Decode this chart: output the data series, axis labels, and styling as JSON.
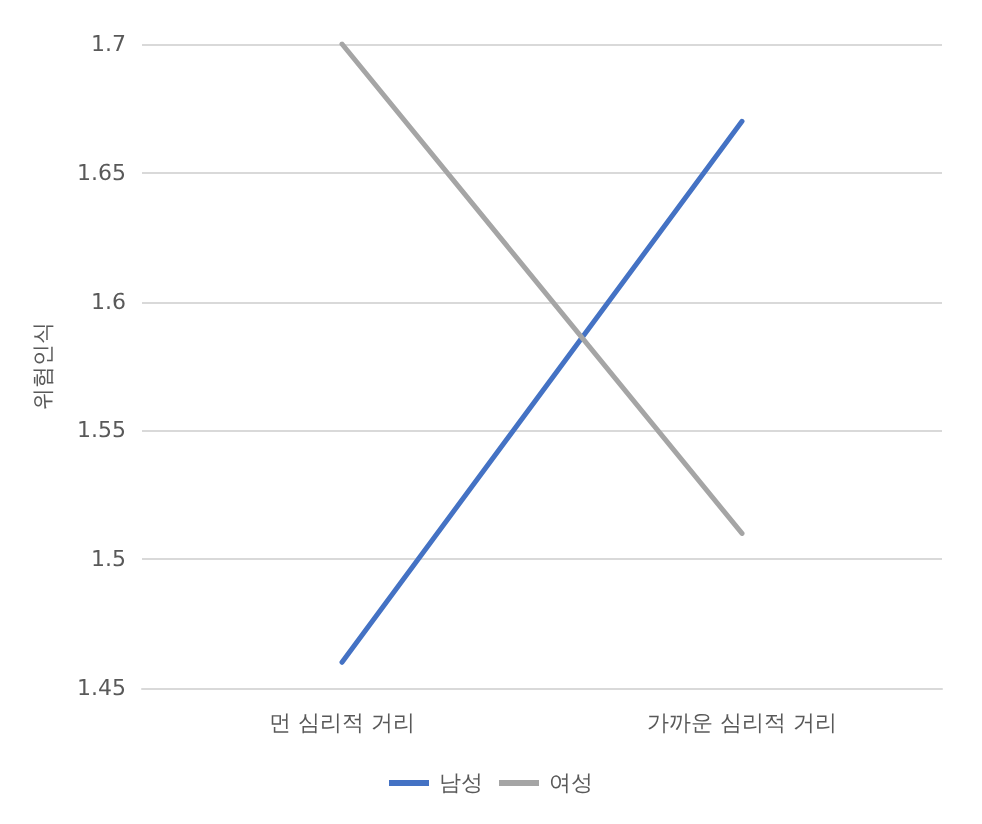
{
  "chart_data": {
    "type": "line",
    "ylabel": "위험인식",
    "categories": [
      "먼 심리적 거리",
      "가까운 심리적 거리"
    ],
    "series": [
      {
        "name": "남성",
        "color": "#4472c4",
        "values": [
          1.46,
          1.67
        ]
      },
      {
        "name": "여성",
        "color": "#a5a5a5",
        "values": [
          1.7,
          1.51
        ]
      }
    ],
    "ylim": [
      1.45,
      1.7
    ],
    "yticks": [
      1.45,
      1.5,
      1.55,
      1.6,
      1.65,
      1.7
    ],
    "grid": "y",
    "legend": "bottom",
    "marker": "none",
    "line_style": "solid"
  }
}
